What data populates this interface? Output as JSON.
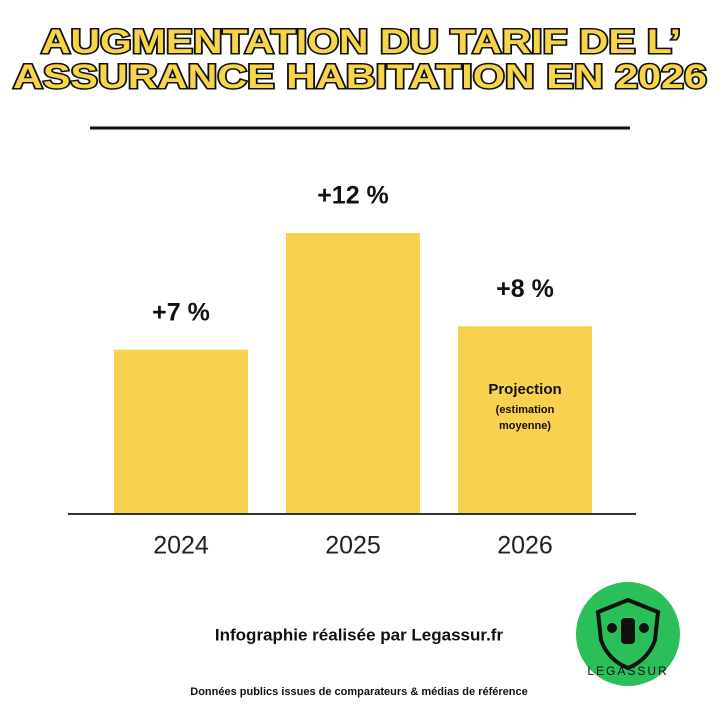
{
  "chart_data": {
    "type": "bar",
    "title_lines": [
      "AUGMENTATION DU TARIF DE L’",
      "ASSURANCE HABITATION EN 2026"
    ],
    "categories": [
      "2024",
      "2025",
      "2026"
    ],
    "values": [
      7,
      12,
      8
    ],
    "value_labels": [
      "+7 %",
      "+12 %",
      "+8 %"
    ],
    "color": "#f8d24f",
    "annotation": {
      "title": "Projection",
      "lines": [
        "(estimation",
        "moyenne)"
      ]
    },
    "footer": "Infographie réalisée par Legassur.fr",
    "source": "Données publics issues de comparateurs & médias de référence",
    "logo_text": "LEGASSUR"
  }
}
